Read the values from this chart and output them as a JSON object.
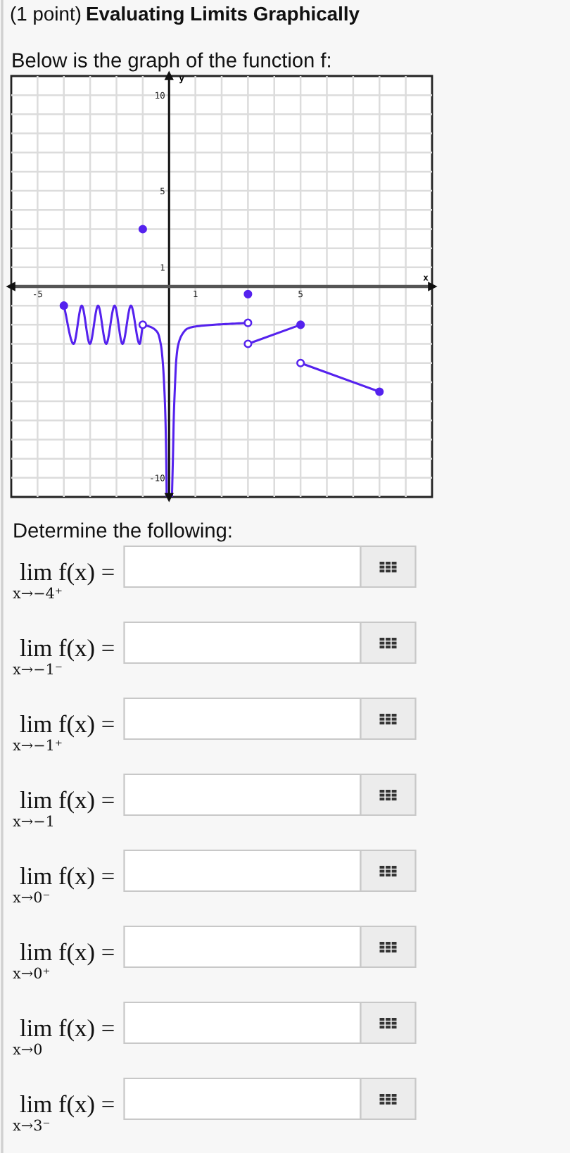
{
  "chart_data": {
    "type": "line",
    "title": "Evaluating Limits Graphically",
    "subtitle": "Below is the graph of the function f:",
    "xlabel": "x",
    "ylabel": "y",
    "xlim": [
      -6,
      10
    ],
    "ylim": [
      -11,
      11
    ],
    "xticks": [
      -5,
      {
        "value": -4,
        "label": null
      },
      {
        "value": -3,
        "label": null
      },
      {
        "value": -2,
        "label": null
      },
      {
        "value": -1,
        "label": null
      },
      {
        "value": 0,
        "label": null
      },
      1,
      {
        "value": 2,
        "label": null
      },
      {
        "value": 3,
        "label": null
      },
      {
        "value": 4,
        "label": null
      },
      5,
      {
        "value": 6,
        "label": null
      },
      {
        "value": 7,
        "label": null
      },
      {
        "value": 8,
        "label": null
      },
      {
        "value": 9,
        "label": null
      }
    ],
    "yticks": [
      -10,
      {
        "value": -9,
        "label": null
      },
      {
        "value": -8,
        "label": null
      },
      {
        "value": -7,
        "label": null
      },
      {
        "value": -6,
        "label": null
      },
      {
        "value": -5,
        "label": null
      },
      {
        "value": -4,
        "label": null
      },
      {
        "value": -3,
        "label": null
      },
      {
        "value": -2,
        "label": null
      },
      {
        "value": -1,
        "label": null
      },
      {
        "value": 0,
        "label": null
      },
      1,
      {
        "value": 2,
        "label": null
      },
      {
        "value": 3,
        "label": null
      },
      {
        "value": 4,
        "label": null
      },
      5,
      {
        "value": 6,
        "label": null
      },
      {
        "value": 7,
        "label": null
      },
      {
        "value": 8,
        "label": null
      },
      {
        "value": 9,
        "label": null
      },
      10
    ],
    "grid": true,
    "annotations": [
      "(1 point)",
      "Determine the following:",
      "lim f(x) =",
      "x→−4⁺",
      "lim f(x) =",
      "x→−1⁻",
      "lim f(x) =",
      "x→−1⁺",
      "lim f(x) =",
      "x→−1",
      "lim f(x) =",
      "x→0⁻",
      "lim f(x) =",
      "x→0⁺",
      "lim f(x) =",
      "x→0",
      "lim f(x) =",
      "x→3⁻"
    ],
    "series": [
      {
        "color": "#5522ee",
        "marker": "none",
        "x": [
          -4,
          -3.63,
          -3.32,
          -3.01,
          -2.7,
          -2.39,
          -2.07,
          -1.77,
          -1.45,
          -1.12,
          -1
        ],
        "values": [
          -1,
          -3,
          -1,
          -3,
          -1,
          -3,
          -1,
          -3,
          -1,
          -3,
          -2
        ]
      },
      {
        "color": "#5522ee",
        "marker": "none",
        "x": [
          -1,
          -0.71,
          -0.44,
          -0.3,
          -0.23,
          -0.18,
          -0.14,
          -0.11,
          -0.09
        ],
        "values": [
          -2,
          -2.11,
          -2.4,
          -3.14,
          -4.12,
          -5.34,
          -6.81,
          -8.77,
          -11
        ]
      },
      {
        "color": "#5522ee",
        "marker": "none",
        "x": [
          0.11,
          0.15,
          0.18,
          0.22,
          0.27,
          0.34,
          0.5,
          0.7,
          1.06,
          3
        ],
        "values": [
          -11,
          -8.77,
          -6.81,
          -5.34,
          -3.9,
          -3.1,
          -2.5,
          -2.2,
          -2.08,
          -1.9
        ]
      },
      {
        "color": "#5522ee",
        "marker": "none",
        "x": [
          3,
          5
        ],
        "values": [
          -3,
          -2
        ]
      },
      {
        "color": "#5522ee",
        "marker": "none",
        "x": [
          5,
          8
        ],
        "values": [
          -4,
          -5.5
        ]
      },
      {
        "type": "scatter",
        "color": "#5522ee",
        "marker": "circle",
        "x": [
          -4,
          -1,
          3,
          5,
          8
        ],
        "values": [
          -1,
          3,
          -0.4,
          -2,
          -5.5
        ]
      },
      {
        "type": "scatter",
        "color": "#5522ee",
        "marker": "open circle",
        "x": [
          -1,
          3,
          3,
          5
        ],
        "values": [
          -2,
          -1.9,
          -3,
          -4
        ]
      }
    ]
  }
}
